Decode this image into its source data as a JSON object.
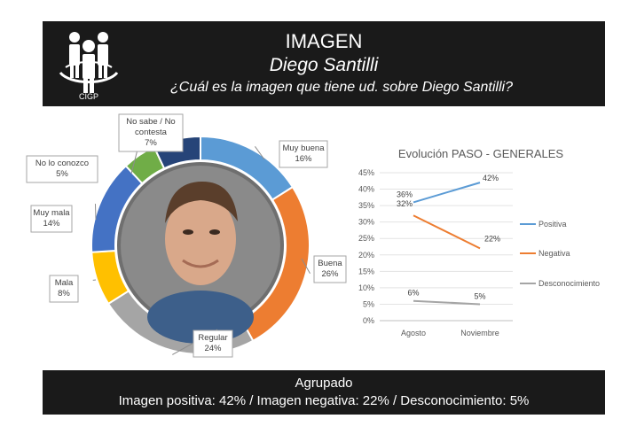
{
  "header": {
    "title": "IMAGEN",
    "name": "Diego Santilli",
    "question": "¿Cuál es la imagen que tiene ud. sobre Diego Santilli?",
    "logo_text": "CIGP"
  },
  "footer": {
    "title": "Agrupado",
    "summary": "Imagen positiva: 42% / Imagen negativa: 22% / Desconocimiento: 5%"
  },
  "chart_data": [
    {
      "type": "pie",
      "style": "donut",
      "slices": [
        {
          "label": "Muy buena",
          "value": 16,
          "display": "16%",
          "color": "#5b9bd5"
        },
        {
          "label": "Buena",
          "value": 26,
          "display": "26%",
          "color": "#ed7d31"
        },
        {
          "label": "Regular",
          "value": 24,
          "display": "24%",
          "color": "#a5a5a5"
        },
        {
          "label": "Mala",
          "value": 8,
          "display": "8%",
          "color": "#ffc000"
        },
        {
          "label": "Muy mala",
          "value": 14,
          "display": "14%",
          "color": "#4472c4"
        },
        {
          "label": "No lo conozco",
          "value": 5,
          "display": "5%",
          "color": "#70ad47"
        },
        {
          "label": "No sabe / No contesta",
          "value": 7,
          "display": "7%",
          "color": "#264478"
        }
      ]
    },
    {
      "type": "line",
      "title": "Evolución PASO - GENERALES",
      "categories": [
        "Agosto",
        "Noviembre"
      ],
      "ylim": [
        0,
        45
      ],
      "yticks": [
        "0%",
        "5%",
        "10%",
        "15%",
        "20%",
        "25%",
        "30%",
        "35%",
        "40%",
        "45%"
      ],
      "legend_position": "right",
      "series": [
        {
          "name": "Positiva",
          "values": [
            36,
            42
          ],
          "labels": [
            "36%",
            "42%"
          ],
          "color": "#5b9bd5"
        },
        {
          "name": "Negativa",
          "values": [
            32,
            22
          ],
          "labels": [
            "32%",
            "22%"
          ],
          "color": "#ed7d31"
        },
        {
          "name": "Desconocimiento",
          "values": [
            6,
            5
          ],
          "labels": [
            "6%",
            "5%"
          ],
          "color": "#a5a5a5"
        }
      ]
    }
  ]
}
